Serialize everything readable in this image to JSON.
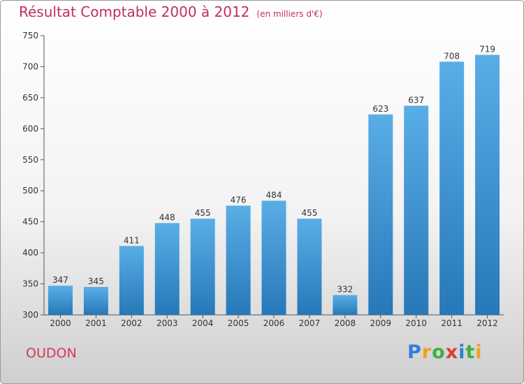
{
  "title": "Résultat Comptable 2000 à 2012",
  "subtitle": "(en milliers d'€)",
  "commune": "OUDON",
  "logo": {
    "text": "Proxiti",
    "colors": [
      "#2e7fd6",
      "#f0a020",
      "#3cb043",
      "#e03c31",
      "#2e7fd6",
      "#3cb043",
      "#f0a020"
    ]
  },
  "colors": {
    "bar_top": "#5aaee6",
    "bar_bottom": "#2678b8",
    "title": "#c0305c"
  },
  "chart_data": {
    "type": "bar",
    "categories": [
      "2000",
      "2001",
      "2002",
      "2003",
      "2004",
      "2005",
      "2006",
      "2007",
      "2008",
      "2009",
      "2010",
      "2011",
      "2012"
    ],
    "values": [
      347,
      345,
      411,
      448,
      455,
      476,
      484,
      455,
      332,
      623,
      637,
      708,
      719
    ],
    "ylim": [
      300,
      750
    ],
    "yticks": [
      300,
      350,
      400,
      450,
      500,
      550,
      600,
      650,
      700,
      750
    ],
    "grid": false,
    "data_labels": true
  }
}
